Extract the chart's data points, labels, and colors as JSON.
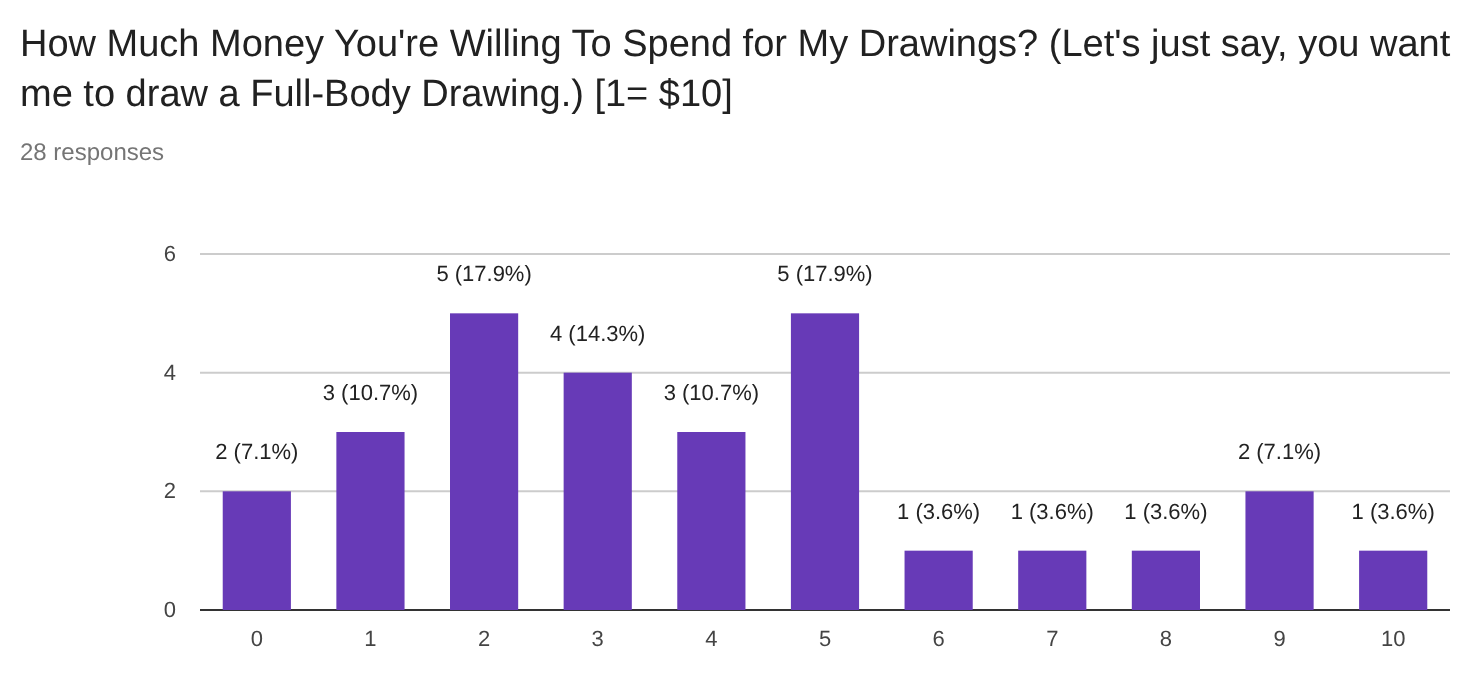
{
  "chart_data": {
    "type": "bar",
    "title": "How Much Money You're Willing To Spend for My Drawings? (Let's just say, you want me to draw a Full-Body Drawing.) [1= $10]",
    "subtitle": "28 responses",
    "categories": [
      "0",
      "1",
      "2",
      "3",
      "4",
      "5",
      "6",
      "7",
      "8",
      "9",
      "10"
    ],
    "values": [
      2,
      3,
      5,
      4,
      3,
      5,
      1,
      1,
      1,
      2,
      1
    ],
    "value_labels": [
      "2 (7.1%)",
      "3 (10.7%)",
      "5 (17.9%)",
      "4 (14.3%)",
      "3 (10.7%)",
      "5 (17.9%)",
      "1 (3.6%)",
      "1 (3.6%)",
      "1 (3.6%)",
      "2 (7.1%)",
      "1 (3.6%)"
    ],
    "color": "#673ab7",
    "ylim": [
      0,
      6
    ],
    "yticks": [
      0,
      2,
      4,
      6
    ],
    "grid": "y"
  }
}
